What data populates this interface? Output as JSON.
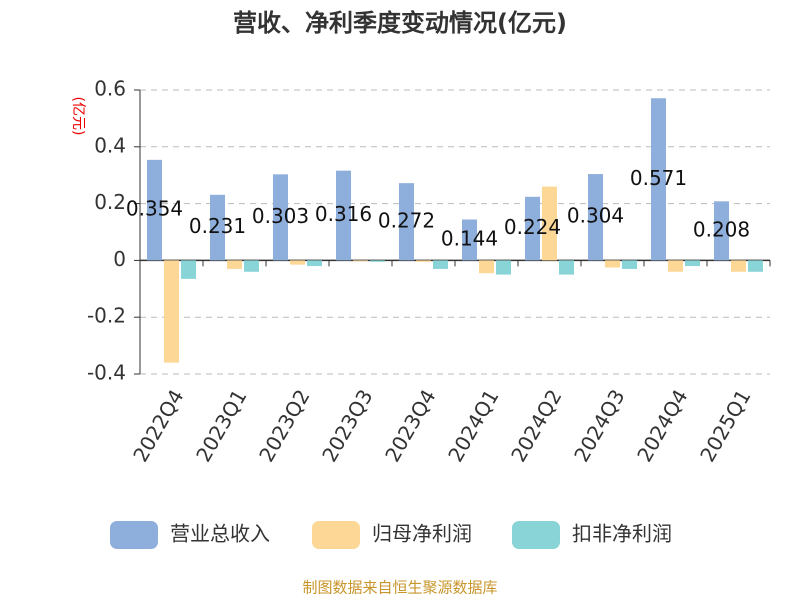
{
  "chart_data": {
    "type": "bar",
    "title": "营收、净利季度变动情况(亿元)",
    "y_label": "(亿元)",
    "categories": [
      "2022Q4",
      "2023Q1",
      "2023Q2",
      "2023Q3",
      "2023Q4",
      "2024Q1",
      "2024Q2",
      "2024Q3",
      "2024Q4",
      "2025Q1"
    ],
    "series": [
      {
        "name": "营业总收入",
        "color": "#8eaedb",
        "values": [
          0.354,
          0.231,
          0.303,
          0.316,
          0.272,
          0.144,
          0.224,
          0.304,
          0.571,
          0.208
        ]
      },
      {
        "name": "归母净利润",
        "color": "#fdd796",
        "values": [
          -0.36,
          -0.03,
          -0.015,
          -0.003,
          -0.005,
          -0.045,
          0.26,
          -0.025,
          -0.04,
          -0.04
        ]
      },
      {
        "name": "扣非净利润",
        "color": "#88d4d6",
        "values": [
          -0.065,
          -0.04,
          -0.02,
          -0.005,
          -0.03,
          -0.05,
          -0.05,
          -0.03,
          -0.02,
          -0.04
        ]
      }
    ],
    "ylim": [
      -0.4,
      0.6
    ],
    "yticks": [
      -0.4,
      -0.2,
      0,
      0.2,
      0.4,
      0.6
    ],
    "grid": true,
    "source": "制图数据来自恒生聚源数据库"
  }
}
